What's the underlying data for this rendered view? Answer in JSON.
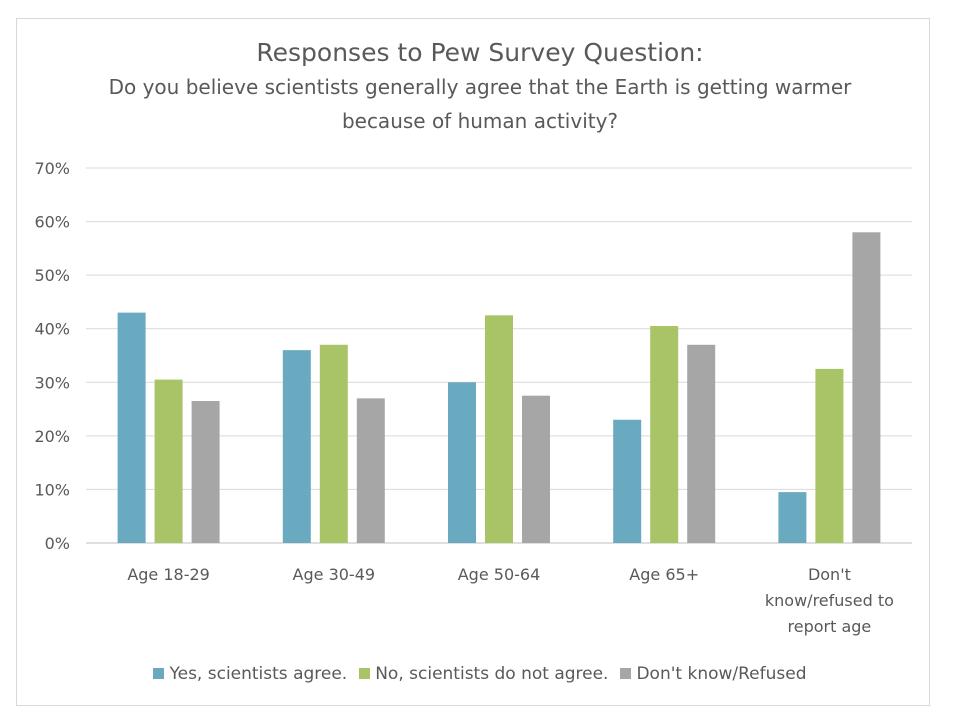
{
  "chart_data": {
    "type": "bar",
    "title": "Responses to Pew Survey Question:",
    "subtitle": "Do you believe scientists generally agree that the Earth is getting warmer because of human activity?",
    "categories": [
      [
        "Age 18-29"
      ],
      [
        "Age 30-49"
      ],
      [
        "Age 50-64"
      ],
      [
        "Age 65+"
      ],
      [
        "Don't",
        "know/refused to",
        "report age"
      ]
    ],
    "series": [
      {
        "name": "Yes, scientists agree.",
        "color": "#6aaac0",
        "values": [
          43,
          36,
          30,
          23,
          9.5
        ]
      },
      {
        "name": "No, scientists do not agree.",
        "color": "#a9c466",
        "values": [
          30.5,
          37,
          42.5,
          40.5,
          32.5
        ]
      },
      {
        "name": "Don't know/Refused",
        "color": "#a6a6a6",
        "values": [
          26.5,
          27,
          27.5,
          37,
          58
        ]
      }
    ],
    "yticks": [
      "0%",
      "10%",
      "20%",
      "30%",
      "40%",
      "50%",
      "60%",
      "70%"
    ],
    "ylim": [
      0,
      70
    ],
    "grid": true,
    "legend_position": "bottom"
  }
}
